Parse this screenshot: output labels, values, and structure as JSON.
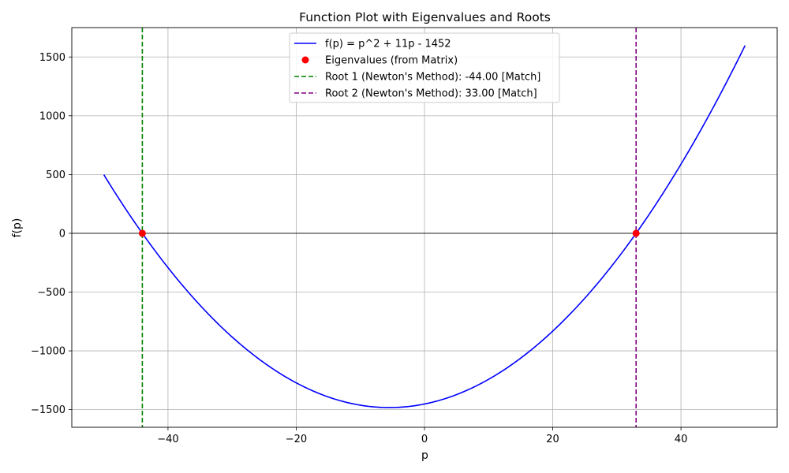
{
  "chart_data": {
    "type": "line",
    "title": "Function Plot with Eigenvalues and Roots",
    "xlabel": "p",
    "ylabel": "f(p)",
    "xlim": [
      -55,
      55
    ],
    "ylim": [
      -1650,
      1750
    ],
    "grid": true,
    "legend_position": "top-center",
    "x_ticks": [
      -40,
      -20,
      0,
      20,
      40
    ],
    "x_tick_labels": [
      "−40",
      "−20",
      "0",
      "20",
      "40"
    ],
    "y_ticks": [
      -1500,
      -1000,
      -500,
      0,
      500,
      1000,
      1500
    ],
    "y_tick_labels": [
      "−1500",
      "−1000",
      "−500",
      "0",
      "500",
      "1000",
      "1500"
    ],
    "function": {
      "name": "f(p) = p^2 + 11p - 1452",
      "coefficients": [
        1,
        11,
        -1452
      ],
      "x_range": [
        -50,
        50
      ],
      "color": "#0000ff"
    },
    "eigenvalues": {
      "name": "Eigenvalues (from Matrix)",
      "points": [
        {
          "x": -44,
          "y": 0
        },
        {
          "x": 33,
          "y": 0
        }
      ],
      "color": "#ff0000"
    },
    "roots": [
      {
        "name": "Root 1 (Newton's Method): -44.00 [Match]",
        "x": -44,
        "color": "#008000"
      },
      {
        "name": "Root 2 (Newton's Method): 33.00 [Match]",
        "x": 33,
        "color": "#800080"
      }
    ],
    "zero_line": {
      "y": 0,
      "color": "#000000"
    }
  }
}
